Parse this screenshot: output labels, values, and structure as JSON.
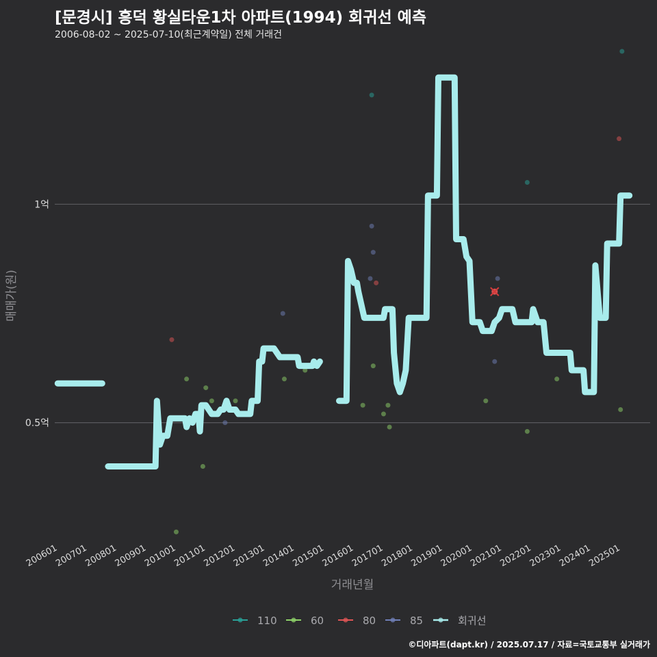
{
  "title": "[문경시] 흥덕 황실타운1차 아파트(1994) 회귀선 예측",
  "subtitle": "2006-08-02 ~ 2025-07-10(최근계약일) 전체 거래건",
  "footer": "©디아파트(dapt.kr) / 2025.07.17 / 자료=국토교통부 실거래가",
  "chart_data": {
    "type": "line",
    "xlabel": "거래년월",
    "ylabel": "매매가(원)",
    "x_ticks": [
      "200601",
      "200701",
      "200801",
      "200901",
      "201001",
      "201101",
      "201201",
      "201301",
      "201401",
      "201501",
      "201601",
      "201701",
      "201801",
      "201901",
      "202001",
      "202101",
      "202201",
      "202301",
      "202401",
      "202501"
    ],
    "x_range": [
      2005.9,
      2026.0
    ],
    "y_ticks": [
      {
        "value": 0.5,
        "label": "0.5억"
      },
      {
        "value": 1.0,
        "label": "1억"
      }
    ],
    "y_range": [
      0.23,
      1.35
    ],
    "grid": true,
    "legend_position": "bottom",
    "colors": {
      "110": "#2aa198",
      "60": "#8fd36a",
      "80": "#e05555",
      "85": "#7080b8",
      "regression": "#a8ecec"
    },
    "legend": [
      {
        "key": "110",
        "label": "110"
      },
      {
        "key": "60",
        "label": "60"
      },
      {
        "key": "80",
        "label": "80"
      },
      {
        "key": "85",
        "label": "85"
      },
      {
        "key": "regression",
        "label": "회귀선"
      }
    ],
    "regression_segments": [
      [
        [
          2006.0,
          0.59
        ],
        [
          2007.5,
          0.59
        ]
      ],
      [
        [
          2007.7,
          0.4
        ],
        [
          2009.3,
          0.4
        ],
        [
          2009.35,
          0.55
        ],
        [
          2009.45,
          0.45
        ],
        [
          2009.55,
          0.47
        ],
        [
          2009.7,
          0.47
        ],
        [
          2009.8,
          0.51
        ],
        [
          2010.3,
          0.51
        ],
        [
          2010.35,
          0.49
        ],
        [
          2010.45,
          0.51
        ],
        [
          2010.55,
          0.5
        ],
        [
          2010.65,
          0.52
        ],
        [
          2010.75,
          0.52
        ],
        [
          2010.8,
          0.48
        ],
        [
          2010.85,
          0.54
        ],
        [
          2011.0,
          0.54
        ],
        [
          2011.1,
          0.53
        ],
        [
          2011.2,
          0.52
        ],
        [
          2011.4,
          0.52
        ],
        [
          2011.5,
          0.53
        ],
        [
          2011.6,
          0.53
        ],
        [
          2011.7,
          0.55
        ],
        [
          2011.8,
          0.53
        ],
        [
          2012.0,
          0.53
        ],
        [
          2012.1,
          0.52
        ],
        [
          2012.5,
          0.52
        ],
        [
          2012.55,
          0.55
        ],
        [
          2012.75,
          0.55
        ],
        [
          2012.8,
          0.64
        ],
        [
          2012.9,
          0.64
        ],
        [
          2012.95,
          0.67
        ],
        [
          2013.3,
          0.67
        ],
        [
          2013.4,
          0.66
        ],
        [
          2013.5,
          0.65
        ],
        [
          2014.1,
          0.65
        ],
        [
          2014.15,
          0.63
        ],
        [
          2014.6,
          0.63
        ],
        [
          2014.65,
          0.64
        ],
        [
          2014.75,
          0.63
        ],
        [
          2014.85,
          0.64
        ]
      ],
      [
        [
          2015.5,
          0.55
        ],
        [
          2015.75,
          0.55
        ],
        [
          2015.8,
          0.87
        ],
        [
          2015.9,
          0.85
        ],
        [
          2016.0,
          0.82
        ],
        [
          2016.1,
          0.82
        ],
        [
          2016.15,
          0.8
        ],
        [
          2016.35,
          0.74
        ],
        [
          2017.0,
          0.74
        ],
        [
          2017.05,
          0.76
        ],
        [
          2017.3,
          0.76
        ],
        [
          2017.35,
          0.66
        ],
        [
          2017.45,
          0.59
        ],
        [
          2017.55,
          0.57
        ],
        [
          2017.65,
          0.59
        ],
        [
          2017.75,
          0.62
        ],
        [
          2017.85,
          0.74
        ],
        [
          2018.45,
          0.74
        ],
        [
          2018.5,
          1.02
        ],
        [
          2018.8,
          1.02
        ],
        [
          2018.85,
          1.29
        ],
        [
          2019.4,
          1.29
        ],
        [
          2019.45,
          0.92
        ],
        [
          2019.7,
          0.92
        ],
        [
          2019.8,
          0.88
        ],
        [
          2019.9,
          0.87
        ],
        [
          2020.0,
          0.73
        ],
        [
          2020.25,
          0.73
        ],
        [
          2020.35,
          0.71
        ],
        [
          2020.65,
          0.71
        ],
        [
          2020.75,
          0.73
        ],
        [
          2020.9,
          0.74
        ],
        [
          2021.0,
          0.76
        ],
        [
          2021.35,
          0.76
        ],
        [
          2021.45,
          0.73
        ],
        [
          2022.0,
          0.73
        ],
        [
          2022.05,
          0.76
        ],
        [
          2022.2,
          0.73
        ],
        [
          2022.4,
          0.73
        ],
        [
          2022.5,
          0.66
        ],
        [
          2023.3,
          0.66
        ],
        [
          2023.35,
          0.62
        ],
        [
          2023.75,
          0.62
        ],
        [
          2023.8,
          0.57
        ],
        [
          2024.1,
          0.57
        ],
        [
          2024.15,
          0.86
        ],
        [
          2024.3,
          0.74
        ],
        [
          2024.5,
          0.74
        ],
        [
          2024.55,
          0.91
        ],
        [
          2024.95,
          0.91
        ],
        [
          2025.0,
          1.02
        ],
        [
          2025.3,
          1.02
        ]
      ]
    ],
    "trades": [
      {
        "series": "110",
        "x": 2025.05,
        "y": 1.35
      },
      {
        "series": "110",
        "x": 2016.6,
        "y": 1.25
      },
      {
        "series": "110",
        "x": 2021.85,
        "y": 1.05
      },
      {
        "series": "80",
        "x": 2024.95,
        "y": 1.15
      },
      {
        "series": "80",
        "x": 2009.85,
        "y": 0.69
      },
      {
        "series": "80",
        "x": 2016.75,
        "y": 0.82
      },
      {
        "series": "80",
        "x": 2020.75,
        "y": 0.8
      },
      {
        "series": "85",
        "x": 2016.6,
        "y": 0.95
      },
      {
        "series": "85",
        "x": 2016.65,
        "y": 0.89
      },
      {
        "series": "85",
        "x": 2016.55,
        "y": 0.83
      },
      {
        "series": "85",
        "x": 2020.85,
        "y": 0.83
      },
      {
        "series": "85",
        "x": 2020.75,
        "y": 0.64
      },
      {
        "series": "85",
        "x": 2013.6,
        "y": 0.75
      },
      {
        "series": "85",
        "x": 2011.65,
        "y": 0.5
      },
      {
        "series": "60",
        "x": 2010.35,
        "y": 0.6
      },
      {
        "series": "60",
        "x": 2011.0,
        "y": 0.58
      },
      {
        "series": "60",
        "x": 2011.2,
        "y": 0.55
      },
      {
        "series": "60",
        "x": 2012.0,
        "y": 0.55
      },
      {
        "series": "60",
        "x": 2010.9,
        "y": 0.4
      },
      {
        "series": "60",
        "x": 2010.0,
        "y": 0.25
      },
      {
        "series": "60",
        "x": 2013.65,
        "y": 0.6
      },
      {
        "series": "60",
        "x": 2014.35,
        "y": 0.62
      },
      {
        "series": "60",
        "x": 2016.3,
        "y": 0.54
      },
      {
        "series": "60",
        "x": 2016.65,
        "y": 0.63
      },
      {
        "series": "60",
        "x": 2017.0,
        "y": 0.52
      },
      {
        "series": "60",
        "x": 2017.15,
        "y": 0.54
      },
      {
        "series": "60",
        "x": 2017.2,
        "y": 0.49
      },
      {
        "series": "60",
        "x": 2020.45,
        "y": 0.55
      },
      {
        "series": "60",
        "x": 2021.85,
        "y": 0.48
      },
      {
        "series": "60",
        "x": 2022.85,
        "y": 0.6
      },
      {
        "series": "60",
        "x": 2025.0,
        "y": 0.53
      }
    ],
    "highlight": {
      "series": "80",
      "x": 2020.75,
      "y": 0.8
    }
  }
}
